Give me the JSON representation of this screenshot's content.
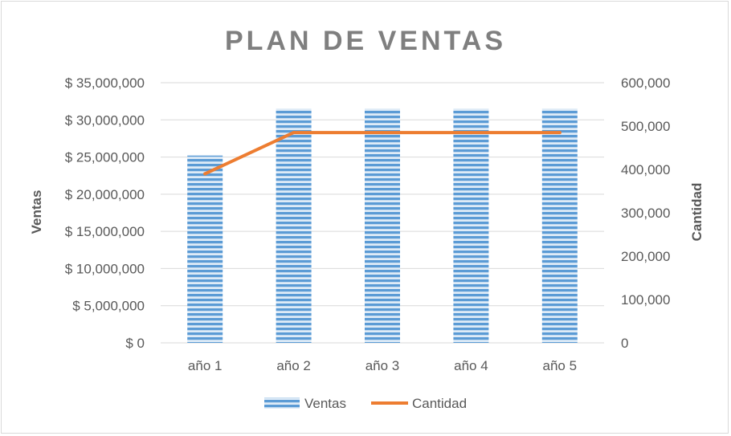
{
  "chart_data": {
    "type": "bar",
    "title": "PLAN DE VENTAS",
    "categories": [
      "año 1",
      "año 2",
      "año 3",
      "año 4",
      "año 5"
    ],
    "series": [
      {
        "name": "Ventas",
        "kind": "bar",
        "axis": "left",
        "values": [
          25200000,
          31500000,
          31500000,
          31500000,
          31500000
        ]
      },
      {
        "name": "Cantidad",
        "kind": "line",
        "axis": "right",
        "values": [
          390000,
          485000,
          485000,
          485000,
          485000
        ]
      }
    ],
    "ylabel": "Ventas",
    "y2label": "Cantidad",
    "ylim": [
      0,
      35000000
    ],
    "y2lim": [
      0,
      600000
    ],
    "yticks": [
      "$ 0",
      "$ 5,000,000",
      "$ 10,000,000",
      "$ 15,000,000",
      "$ 20,000,000",
      "$ 25,000,000",
      "$ 30,000,000",
      "$ 35,000,000"
    ],
    "y2ticks": [
      "0",
      "100,000",
      "200,000",
      "300,000",
      "400,000",
      "500,000",
      "600,000"
    ],
    "grid": true,
    "legend": "bottom",
    "colors": {
      "bar": "#5b9bd5",
      "bar_stripe": "#deebf7",
      "line": "#ed7d31",
      "grid": "#d9d9d9",
      "text": "#595959",
      "title": "#7f7f7f"
    }
  }
}
